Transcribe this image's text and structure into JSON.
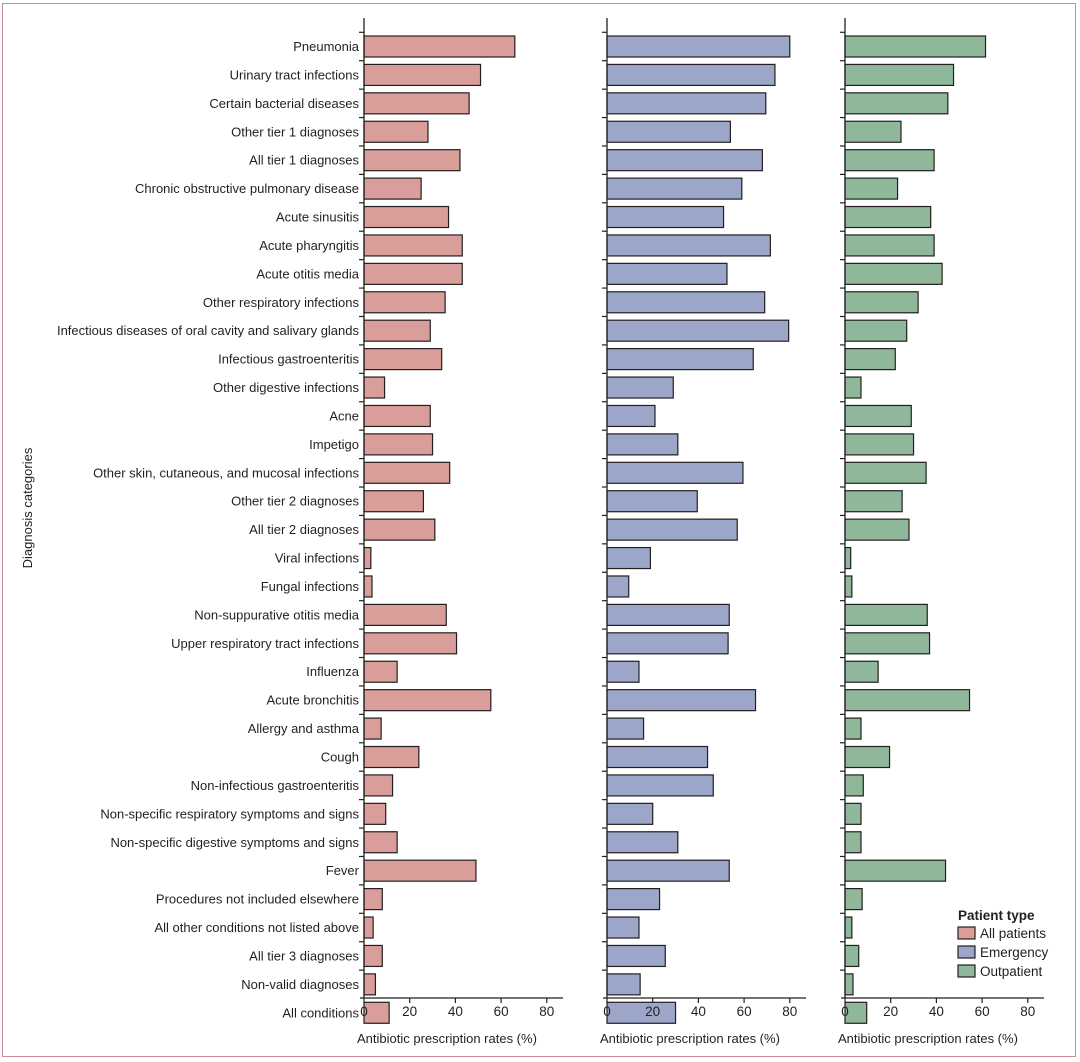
{
  "chart_data": {
    "type": "bar",
    "orientation": "horizontal",
    "layout": "three panels side by side, shared category axis",
    "ylabel": "Diagnosis categories",
    "xlabel": "Antibiotic prescription rates (%)",
    "xlim": [
      0,
      85
    ],
    "xticks": [
      "0",
      "20",
      "40",
      "60",
      "80"
    ],
    "grid": false,
    "categories": [
      "Pneumonia",
      "Urinary tract infections",
      "Certain bacterial diseases",
      "Other tier 1 diagnoses",
      "All tier 1 diagnoses",
      "Chronic obstructive pulmonary disease",
      "Acute sinusitis",
      "Acute pharyngitis",
      "Acute otitis media",
      "Other respiratory infections",
      "Infectious diseases of oral cavity and salivary glands",
      "Infectious gastroenteritis",
      "Other digestive infections",
      "Acne",
      "Impetigo",
      "Other skin, cutaneous, and mucosal infections",
      "Other tier 2 diagnoses",
      "All tier 2 diagnoses",
      "Viral infections",
      "Fungal infections",
      "Non-suppurative otitis media",
      "Upper respiratory tract infections",
      "Influenza",
      "Acute bronchitis",
      "Allergy and asthma",
      "Cough",
      "Non-infectious gastroenteritis",
      "Non-specific respiratory symptoms and signs",
      "Non-specific digestive symptoms and signs",
      "Fever",
      "Procedures not included elsewhere",
      "All other conditions not listed above",
      "All tier 3 diagnoses",
      "Non-valid diagnoses",
      "All conditions"
    ],
    "series": [
      {
        "name": "All patients",
        "color": "#d99e99",
        "values": [
          66,
          51,
          46,
          28,
          42,
          25,
          37,
          43,
          43,
          35.5,
          29,
          34,
          9,
          29,
          30,
          37.5,
          26,
          31,
          3,
          3.5,
          36,
          40.5,
          14.5,
          55.5,
          7.5,
          24,
          12.5,
          9.5,
          14.5,
          49,
          8,
          4,
          8,
          5,
          11
        ]
      },
      {
        "name": "Emergency",
        "color": "#9ba6c8",
        "values": [
          80,
          73.5,
          69.5,
          54,
          68,
          59,
          51,
          71.5,
          52.5,
          69,
          79.5,
          64,
          29,
          21,
          31,
          59.5,
          39.5,
          57,
          19,
          9.5,
          53.5,
          53,
          14,
          65,
          16,
          44,
          46.5,
          20,
          31,
          53.5,
          23,
          14,
          25.5,
          14.5,
          30
        ]
      },
      {
        "name": "Outpatient",
        "color": "#8fb89a",
        "values": [
          61.5,
          47.5,
          45,
          24.5,
          39,
          23,
          37.5,
          39,
          42.5,
          32,
          27,
          22,
          7,
          29,
          30,
          35.5,
          25,
          28,
          2.5,
          3,
          36,
          37,
          14.5,
          54.5,
          7,
          19.5,
          8,
          7,
          7,
          44,
          7.5,
          3,
          6,
          3.5,
          9.5
        ]
      }
    ],
    "legend": {
      "title": "Patient type",
      "position": "bottom-right",
      "entries": [
        "All patients",
        "Emergency",
        "Outpatient"
      ]
    }
  }
}
